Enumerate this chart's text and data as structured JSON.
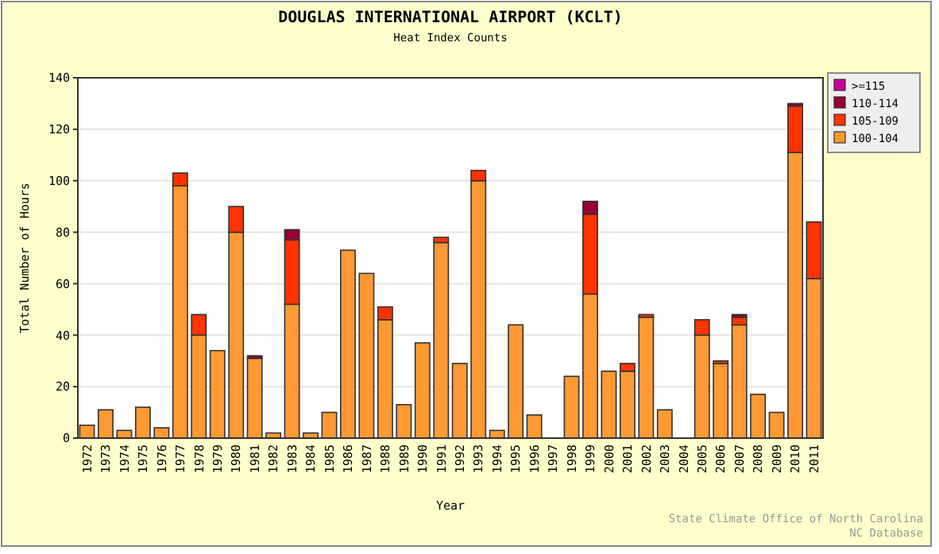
{
  "chart_data": {
    "type": "bar",
    "title": "DOUGLAS INTERNATIONAL AIRPORT (KCLT)",
    "subtitle": "Heat Index Counts",
    "xlabel": "Year",
    "ylabel": "Total Number of Hours",
    "categories": [
      "1972",
      "1973",
      "1974",
      "1975",
      "1976",
      "1977",
      "1978",
      "1979",
      "1980",
      "1981",
      "1982",
      "1983",
      "1984",
      "1985",
      "1986",
      "1987",
      "1988",
      "1989",
      "1990",
      "1991",
      "1992",
      "1993",
      "1994",
      "1995",
      "1996",
      "1997",
      "1998",
      "1999",
      "2000",
      "2001",
      "2002",
      "2003",
      "2004",
      "2005",
      "2006",
      "2007",
      "2008",
      "2009",
      "2010",
      "2011"
    ],
    "stacked": true,
    "series": [
      {
        "name": "100-104",
        "color": "#ff9933",
        "values": [
          5,
          11,
          3,
          12,
          4,
          98,
          40,
          34,
          80,
          31,
          2,
          52,
          2,
          10,
          73,
          64,
          46,
          13,
          37,
          76,
          29,
          100,
          3,
          44,
          9,
          0,
          24,
          56,
          26,
          26,
          47,
          11,
          0,
          40,
          29,
          44,
          17,
          10,
          111,
          62
        ]
      },
      {
        "name": "105-109",
        "color": "#ff3300",
        "values": [
          0,
          0,
          0,
          0,
          0,
          5,
          8,
          0,
          10,
          0,
          0,
          25,
          0,
          0,
          0,
          0,
          5,
          0,
          0,
          2,
          0,
          4,
          0,
          0,
          0,
          0,
          0,
          31,
          0,
          3,
          1,
          0,
          0,
          6,
          1,
          3,
          0,
          0,
          18,
          22
        ]
      },
      {
        "name": "110-114",
        "color": "#990033",
        "values": [
          0,
          0,
          0,
          0,
          0,
          0,
          0,
          0,
          0,
          1,
          0,
          4,
          0,
          0,
          0,
          0,
          0,
          0,
          0,
          0,
          0,
          0,
          0,
          0,
          0,
          0,
          0,
          5,
          0,
          0,
          0,
          0,
          0,
          0,
          0,
          1,
          0,
          0,
          1,
          0
        ]
      },
      {
        "name": ">=115",
        "color": "#cc0099",
        "values": [
          0,
          0,
          0,
          0,
          0,
          0,
          0,
          0,
          0,
          0,
          0,
          0,
          0,
          0,
          0,
          0,
          0,
          0,
          0,
          0,
          0,
          0,
          0,
          0,
          0,
          0,
          0,
          0,
          0,
          0,
          0,
          0,
          0,
          0,
          0,
          0,
          0,
          0,
          0,
          0
        ]
      }
    ],
    "ylim": [
      0,
      140
    ],
    "yticks": [
      0,
      20,
      40,
      60,
      80,
      100,
      120,
      140
    ],
    "grid": "y",
    "legend": "top right",
    "annotations": [
      "State Climate Office of North Carolina",
      "NC Database"
    ]
  }
}
